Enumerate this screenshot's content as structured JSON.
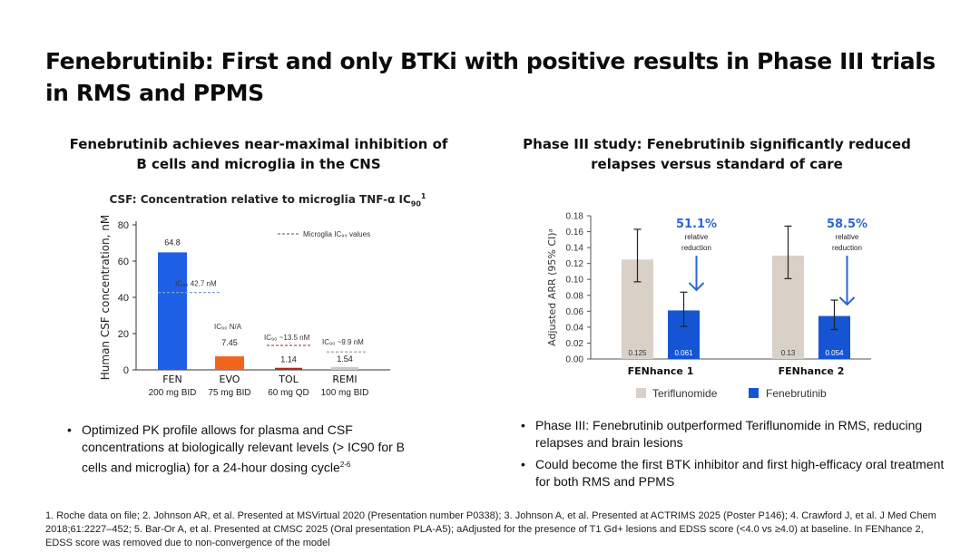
{
  "page_title": "Fenebrutinib: First and only BTKi with positive results in Phase III trials in RMS and PPMS",
  "left_heading": "Fenebrutinib achieves near-maximal inhibition of B cells and microglia in the CNS",
  "right_heading": "Phase III study: Fenebrutinib significantly reduced relapses versus standard of care",
  "colors": {
    "fen_blue": "#1f5fe6",
    "orange": "#f0641e",
    "red_dark": "#b02a1a",
    "tan": "#d9d0c8",
    "fenebrutinib_blue": "#1555d4",
    "arrow_blue": "#2b66d6",
    "dashed_blue": "#7fa3c9",
    "dashed_red": "#b0504a"
  },
  "chart_data": [
    {
      "type": "bar",
      "title": "CSF: Concentration relative to microglia TNF-α IC",
      "title_sub": "90",
      "title_sup": "1",
      "ylabel": "Human CSF concentration, nM",
      "ylim": [
        0,
        80
      ],
      "yticks": [
        "0",
        "20",
        "40",
        "60",
        "80"
      ],
      "categories": [
        "FEN",
        "EVO",
        "TOL",
        "REMI"
      ],
      "doses": [
        "200 mg BID",
        "75 mg BID",
        "60 mg QD",
        "100 mg BID"
      ],
      "values": [
        64.8,
        7.45,
        1.14,
        1.54
      ],
      "value_labels": [
        "64.8",
        "7.45",
        "1.14",
        "1.54"
      ],
      "ic90_labels": [
        "IC₉₀ 42.7 nM",
        "IC₉₀ N/A",
        "IC₉₀ ~13.5 nM",
        "IC₉₀ ~9.9 nM"
      ],
      "ic90_values": [
        42.7,
        null,
        13.5,
        9.9
      ],
      "legend": "Microglia IC₉₀ values",
      "legend_position": "top-right"
    },
    {
      "type": "bar",
      "ylabel": "Adjusted ARR (95% CI)ᵃ",
      "ylim": [
        0,
        0.18
      ],
      "yticks": [
        "0.00",
        "0.02",
        "0.04",
        "0.06",
        "0.08",
        "0.10",
        "0.12",
        "0.14",
        "0.16",
        "0.18"
      ],
      "categories": [
        "FENhance 1",
        "FENhance 2"
      ],
      "series": [
        {
          "name": "Teriflunomide",
          "values": [
            0.125,
            0.13
          ],
          "value_labels": [
            "0.125",
            "0.13"
          ],
          "ci_low": [
            0.097,
            0.101
          ],
          "ci_high": [
            0.163,
            0.167
          ]
        },
        {
          "name": "Fenebrutinib",
          "values": [
            0.061,
            0.054
          ],
          "value_labels": [
            "0.061",
            "0.054"
          ],
          "ci_low": [
            0.041,
            0.037
          ],
          "ci_high": [
            0.084,
            0.074
          ]
        }
      ],
      "annotations": [
        {
          "percent": "51.1%",
          "text_1": "relative",
          "text_2": "reduction"
        },
        {
          "percent": "58.5%",
          "text_1": "relative",
          "text_2": "reduction"
        }
      ],
      "legend_position": "bottom"
    }
  ],
  "left_bullets": [
    {
      "text": "Optimized PK profile allows for plasma and CSF concentrations at biologically relevant levels (> IC90 for B cells and microglia) for a 24-hour dosing cycle",
      "sup": "2-6"
    }
  ],
  "right_bullets": [
    {
      "text": "Phase III: Fenebrutinib outperformed Teriflunomide in RMS, reducing relapses and brain lesions"
    },
    {
      "text": "Could become the first BTK inhibitor and first high-efficacy oral treatment for both RMS and PPMS"
    }
  ],
  "footnote": "1. Roche data on file; 2. Johnson AR, et al. Presented at MSVirtual 2020 (Presentation number P0338); 3. Johnson A, et al. Presented at ACTRIMS 2025 (Poster P146); 4. Crawford J, et al. J Med Chem 2018;61:2227–452; 5. Bar-Or A, et al. Presented at CMSC 2025 (Oral presentation PLA-A5); aAdjusted for the presence of T1 Gd+ lesions and EDSS score (<4.0 vs ≥4.0) at baseline. In FENhance 2, EDSS score was removed due to non-convergence of the model"
}
